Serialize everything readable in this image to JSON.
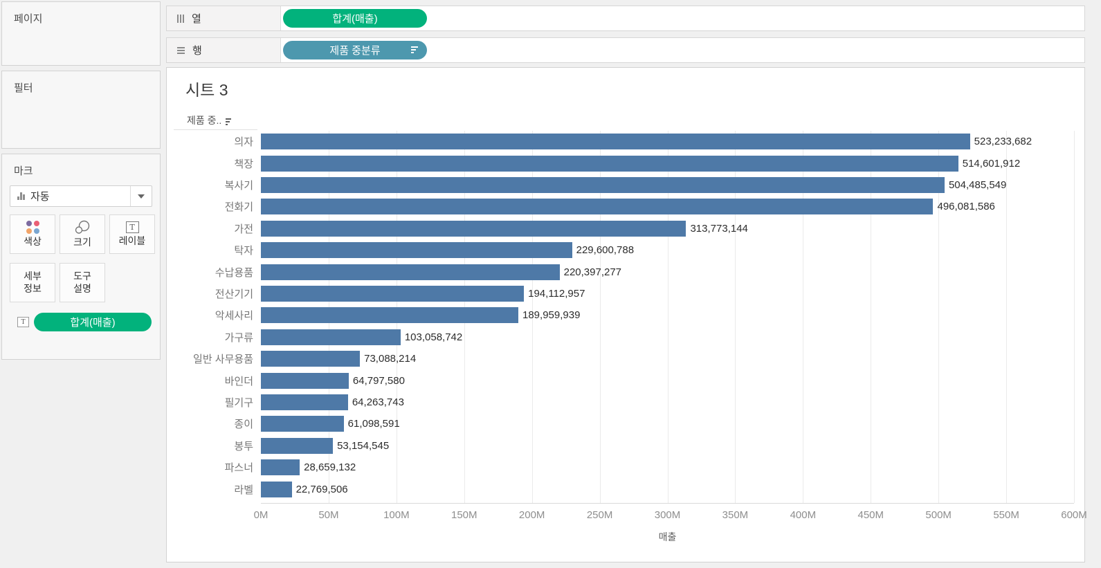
{
  "colors": {
    "bar": "#4e79a7",
    "measure_pill_green": "#02b27c",
    "dimension_pill_blue": "#4d98ae",
    "color_icon_dots": [
      "#7d6ba0",
      "#ea6075",
      "#f2a468",
      "#7aa6d0"
    ]
  },
  "sidebar": {
    "pages": {
      "title": "페이지"
    },
    "filters": {
      "title": "필터"
    },
    "marks": {
      "title": "마크",
      "mark_type_selector": {
        "value": "자동"
      },
      "buttons": {
        "color": {
          "label": "색상"
        },
        "size": {
          "label": "크기"
        },
        "label": {
          "label": "레이블"
        },
        "detail": {
          "line1": "세부",
          "line2": "정보"
        },
        "tooltip": {
          "line1": "도구",
          "line2": "설명"
        }
      },
      "pill": {
        "label": "합계(매출)",
        "icon": "text-label-icon"
      }
    }
  },
  "shelves": {
    "columns": {
      "label": "열",
      "pill": {
        "label": "합계(매출)"
      }
    },
    "rows": {
      "label": "행",
      "pill": {
        "label": "제품 중분류",
        "sorted": "descending"
      }
    }
  },
  "sheet": {
    "title": "시트 3",
    "row_header": "제품 중.."
  },
  "chart_data": {
    "type": "bar",
    "orientation": "horizontal",
    "title": "시트 3",
    "categories": [
      "의자",
      "책장",
      "복사기",
      "전화기",
      "가전",
      "탁자",
      "수납용품",
      "전산기기",
      "악세사리",
      "가구류",
      "일반 사무용품",
      "바인더",
      "필기구",
      "종이",
      "봉투",
      "파스너",
      "라벨"
    ],
    "values": [
      523233682,
      514601912,
      504485549,
      496081586,
      313773144,
      229600788,
      220397277,
      194112957,
      189959939,
      103058742,
      73088214,
      64797580,
      64263743,
      61098591,
      53154545,
      28659132,
      22769506
    ],
    "value_labels": [
      "523,233,682",
      "514,601,912",
      "504,485,549",
      "496,081,586",
      "313,773,144",
      "229,600,788",
      "220,397,277",
      "194,112,957",
      "189,959,939",
      "103,058,742",
      "73,088,214",
      "64,797,580",
      "64,263,743",
      "61,098,591",
      "53,154,545",
      "28,659,132",
      "22,769,506"
    ],
    "x_ticks": [
      "0M",
      "50M",
      "100M",
      "150M",
      "200M",
      "250M",
      "300M",
      "350M",
      "400M",
      "450M",
      "500M",
      "550M",
      "600M"
    ],
    "xlim": [
      0,
      600000000
    ],
    "xlabel": "매출",
    "grid": true,
    "legend": "none",
    "sort": "descending",
    "bar_color": "#4e79a7"
  }
}
